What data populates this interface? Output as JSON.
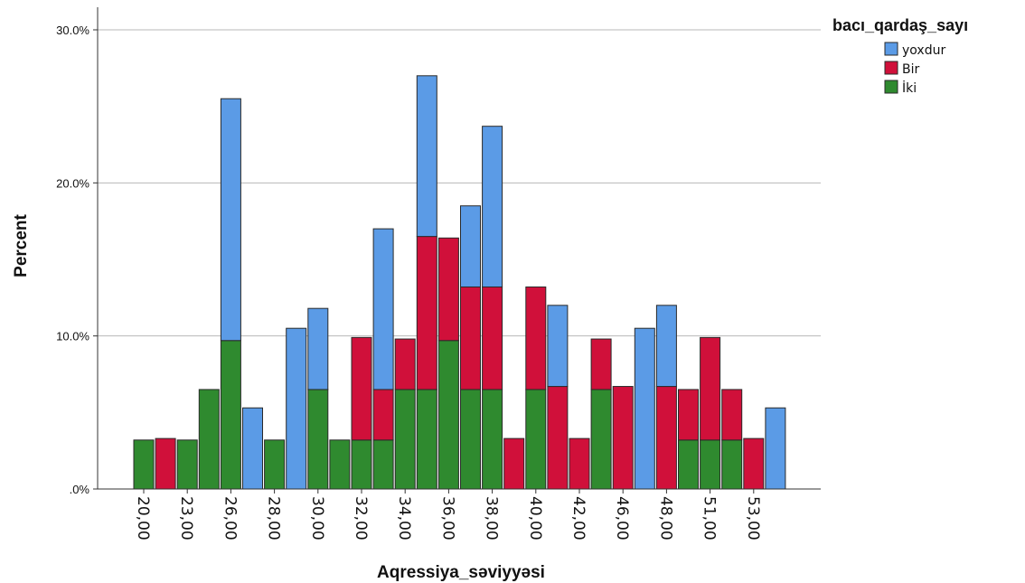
{
  "chart_data": {
    "type": "bar",
    "stacked": true,
    "xlabel": "Aqressiya_səviyyəsi",
    "ylabel": "Percent",
    "ylim": [
      0,
      30
    ],
    "y_ticks": [
      ".0%",
      "10.0%",
      "20.0%",
      "30.0%"
    ],
    "y_tick_values": [
      0,
      10,
      20,
      30
    ],
    "grid": true,
    "legend": {
      "title": "bacı_qardaş_sayı",
      "position": "top-right"
    },
    "x_tick_labels": [
      "20,00",
      "23,00",
      "26,00",
      "28,00",
      "30,00",
      "32,00",
      "34,00",
      "36,00",
      "38,00",
      "40,00",
      "42,00",
      "46,00",
      "48,00",
      "51,00",
      "53,00"
    ],
    "bar_count": 30,
    "series": [
      {
        "name": "İki",
        "color": "#2f8a2f",
        "values": [
          3.2,
          0,
          3.2,
          6.5,
          9.7,
          0,
          3.2,
          0,
          6.5,
          3.2,
          3.2,
          3.2,
          6.5,
          6.5,
          9.7,
          6.5,
          6.5,
          0,
          6.5,
          0,
          0,
          6.5,
          0,
          0,
          0,
          3.2,
          3.2,
          3.2,
          0,
          0
        ]
      },
      {
        "name": "Bir",
        "color": "#d0103a",
        "values": [
          0,
          3.3,
          0,
          0,
          0,
          0,
          0,
          0,
          0,
          0,
          6.7,
          3.3,
          3.3,
          10,
          6.7,
          6.7,
          6.7,
          3.3,
          6.7,
          6.7,
          3.3,
          3.3,
          6.7,
          0,
          6.7,
          3.3,
          6.7,
          3.3,
          3.3,
          0
        ]
      },
      {
        "name": "yoxdur",
        "color": "#5b9be6",
        "values": [
          0,
          0,
          0,
          0,
          15.8,
          5.3,
          0,
          10.5,
          5.3,
          0,
          0,
          10.5,
          0,
          10.5,
          0,
          5.3,
          10.5,
          0,
          0,
          5.3,
          0,
          0,
          0,
          10.5,
          5.3,
          0,
          0,
          0,
          0,
          5.3
        ]
      }
    ]
  }
}
